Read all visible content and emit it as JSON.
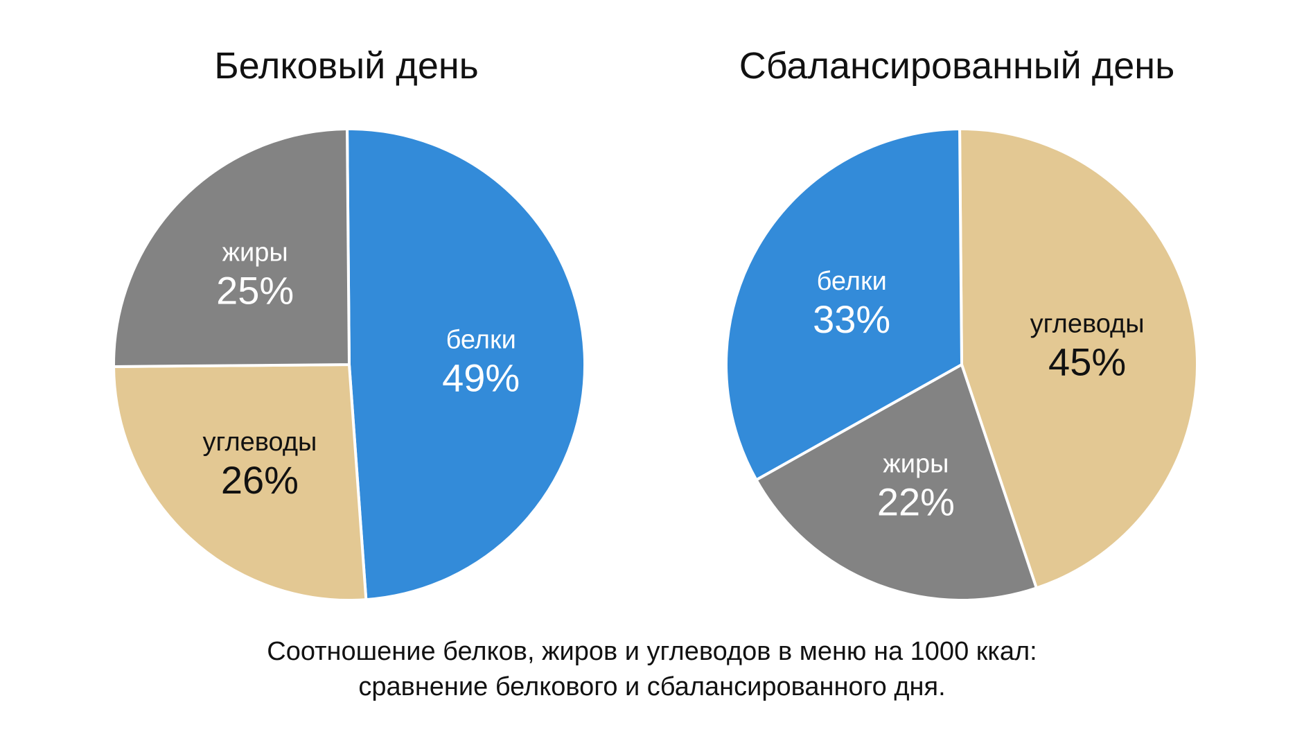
{
  "chart_data": [
    {
      "type": "pie",
      "title": "Белковый день",
      "slices": [
        {
          "label": "белки",
          "value": 49,
          "value_label": "49%",
          "color": "#338bd9",
          "text_color": "#ffffff"
        },
        {
          "label": "углеводы",
          "value": 26,
          "value_label": "26%",
          "color": "#e3c893",
          "text_color": "#111111"
        },
        {
          "label": "жиры",
          "value": 25,
          "value_label": "25%",
          "color": "#838383",
          "text_color": "#ffffff"
        }
      ]
    },
    {
      "type": "pie",
      "title": "Сбалансированный день",
      "slices": [
        {
          "label": "углеводы",
          "value": 45,
          "value_label": "45%",
          "color": "#e3c893",
          "text_color": "#111111"
        },
        {
          "label": "жиры",
          "value": 22,
          "value_label": "22%",
          "color": "#838383",
          "text_color": "#ffffff"
        },
        {
          "label": "белки",
          "value": 33,
          "value_label": "33%",
          "color": "#338bd9",
          "text_color": "#ffffff"
        }
      ]
    }
  ],
  "caption": {
    "line1": "Соотношение белков, жиров и углеводов в меню на 1000 ккал:",
    "line2": "сравнение белкового и сбалансированного дня."
  }
}
